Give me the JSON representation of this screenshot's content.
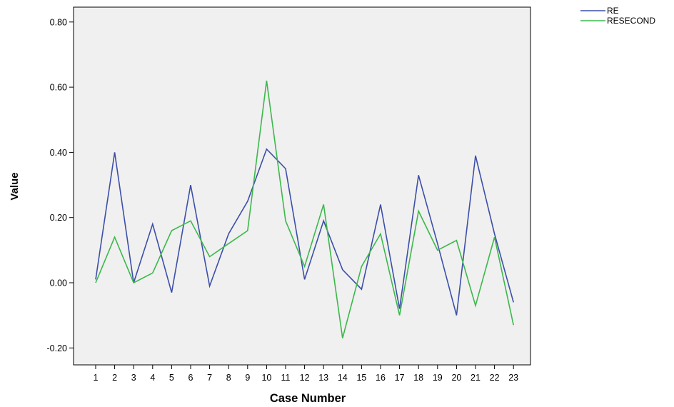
{
  "chart_data": {
    "type": "line",
    "title": "",
    "xlabel": "Case Number",
    "ylabel": "Value",
    "x": [
      1,
      2,
      3,
      4,
      5,
      6,
      7,
      8,
      9,
      10,
      11,
      12,
      13,
      14,
      15,
      16,
      17,
      18,
      19,
      20,
      21,
      22,
      23
    ],
    "ylim": [
      -0.25,
      0.85
    ],
    "yticks": [
      -0.2,
      0.0,
      0.2,
      0.4,
      0.6,
      0.8
    ],
    "ytick_labels": [
      "-0.20",
      "0.00",
      "0.20",
      "0.40",
      "0.60",
      "0.80"
    ],
    "grid": false,
    "legend_position": "outside-top-right",
    "background_color": "#f0f0f0",
    "series": [
      {
        "name": "RE",
        "color": "#3c4fa8",
        "values": [
          0.01,
          0.4,
          0.0,
          0.18,
          -0.03,
          0.3,
          -0.01,
          0.15,
          0.25,
          0.41,
          0.35,
          0.01,
          0.19,
          0.04,
          -0.02,
          0.24,
          -0.08,
          0.33,
          0.12,
          -0.1,
          0.39,
          0.15,
          -0.06
        ]
      },
      {
        "name": "RESECOND",
        "color": "#3cb84b",
        "values": [
          0.0,
          0.14,
          0.0,
          0.03,
          0.16,
          0.19,
          0.08,
          0.12,
          0.16,
          0.62,
          0.19,
          0.05,
          0.24,
          -0.17,
          0.05,
          0.15,
          -0.1,
          0.22,
          0.1,
          0.13,
          -0.07,
          0.14,
          -0.13
        ]
      }
    ]
  }
}
